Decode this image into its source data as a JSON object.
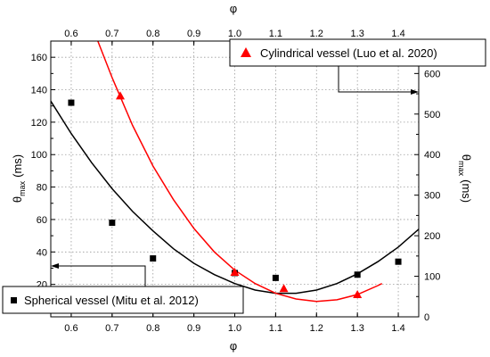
{
  "chart_data": {
    "type": "scatter",
    "title": "",
    "x_axis": {
      "label": "φ",
      "range": [
        0.55,
        1.45
      ],
      "ticks": [
        "0.6",
        "0.7",
        "0.8",
        "0.9",
        "1.0",
        "1.1",
        "1.2",
        "1.3",
        "1.4"
      ]
    },
    "x_axis_top": {
      "label": "φ",
      "ticks": [
        "0.6",
        "0.7",
        "0.8",
        "0.9",
        "1.0",
        "1.1",
        "1.2",
        "1.3",
        "1.4"
      ]
    },
    "y_axis_left": {
      "label_main": "θ",
      "label_sub": "max",
      "label_unit": "(ms)",
      "range": [
        0,
        170
      ],
      "ticks": [
        "20",
        "40",
        "60",
        "80",
        "100",
        "120",
        "140",
        "160"
      ]
    },
    "y_axis_right": {
      "label_main": "θ",
      "label_sub": "max",
      "label_unit": "(ms)",
      "range": [
        0,
        680
      ],
      "ticks": [
        "0",
        "100",
        "200",
        "300",
        "400",
        "500",
        "600"
      ]
    },
    "grid": true,
    "series": [
      {
        "name": "Spherical vessel (Mitu et al. 2012)",
        "axis": "left",
        "marker": "square",
        "color": "#000000",
        "points": [
          [
            0.6,
            132
          ],
          [
            0.7,
            58
          ],
          [
            0.8,
            36
          ],
          [
            1.0,
            27
          ],
          [
            1.1,
            24
          ],
          [
            1.3,
            26
          ],
          [
            1.4,
            34
          ]
        ],
        "fit": [
          [
            0.55,
            133
          ],
          [
            0.6,
            113
          ],
          [
            0.65,
            95
          ],
          [
            0.7,
            79
          ],
          [
            0.75,
            65
          ],
          [
            0.8,
            53
          ],
          [
            0.85,
            42
          ],
          [
            0.9,
            33
          ],
          [
            0.95,
            26
          ],
          [
            1.0,
            20.5
          ],
          [
            1.05,
            16.5
          ],
          [
            1.1,
            14.5
          ],
          [
            1.15,
            14.5
          ],
          [
            1.2,
            16.5
          ],
          [
            1.25,
            20.5
          ],
          [
            1.3,
            26.5
          ],
          [
            1.35,
            34
          ],
          [
            1.4,
            43
          ],
          [
            1.45,
            54
          ]
        ]
      },
      {
        "name": "Cylindrical vessel (Luo et al. 2020)",
        "axis": "right",
        "marker": "triangle",
        "color": "#ff0000",
        "points": [
          [
            0.72,
            545
          ],
          [
            1.0,
            110
          ],
          [
            1.12,
            70
          ],
          [
            1.3,
            55
          ]
        ],
        "fit": [
          [
            0.665,
            680
          ],
          [
            0.7,
            590
          ],
          [
            0.75,
            472
          ],
          [
            0.8,
            372
          ],
          [
            0.85,
            289
          ],
          [
            0.9,
            218
          ],
          [
            0.95,
            160
          ],
          [
            1.0,
            115
          ],
          [
            1.05,
            82
          ],
          [
            1.1,
            58
          ],
          [
            1.15,
            44
          ],
          [
            1.2,
            38
          ],
          [
            1.25,
            42
          ],
          [
            1.3,
            55
          ],
          [
            1.35,
            77
          ],
          [
            1.36,
            82
          ]
        ]
      }
    ],
    "legend": [
      {
        "text": "Cylindrical vessel (Luo et al. 2020)",
        "marker": "triangle",
        "color": "#ff0000",
        "placement": "top-right"
      },
      {
        "text": "Spherical vessel (Mitu et al. 2012)",
        "marker": "square",
        "color": "#000000",
        "placement": "bottom-left"
      }
    ]
  }
}
